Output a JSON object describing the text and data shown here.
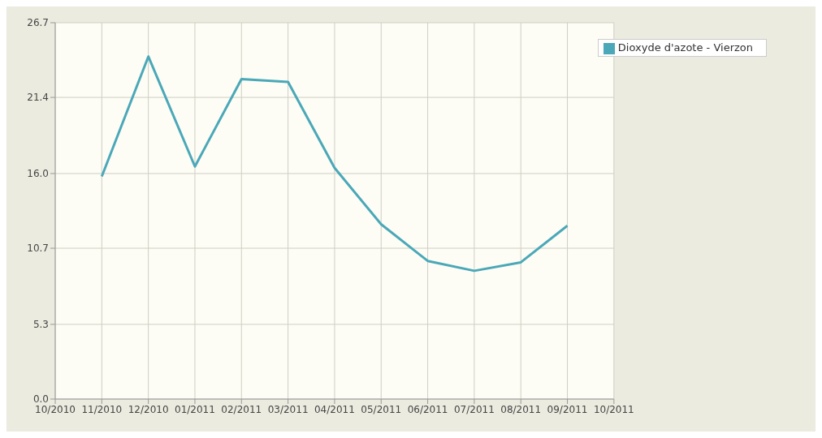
{
  "chart_data": {
    "type": "line",
    "categories": [
      "10/2010",
      "11/2010",
      "12/2010",
      "01/2011",
      "02/2011",
      "03/2011",
      "04/2011",
      "05/2011",
      "06/2011",
      "07/2011",
      "08/2011",
      "09/2011",
      "10/2011"
    ],
    "series": [
      {
        "name": "Dioxyde d'azote - Vierzon",
        "color": "#4aa8b8",
        "values": [
          null,
          15.8,
          24.3,
          16.5,
          22.7,
          22.5,
          16.4,
          12.4,
          9.8,
          9.1,
          9.7,
          12.3,
          null
        ]
      }
    ],
    "ylim": [
      0,
      26.7
    ],
    "yticks": [
      {
        "value": 0,
        "label": "0.0"
      },
      5.3,
      10.7,
      {
        "value": 16,
        "label": "16.0"
      },
      21.4,
      26.7
    ],
    "grid": true,
    "legend": "top right",
    "marker": "none",
    "line_style": "solid"
  }
}
